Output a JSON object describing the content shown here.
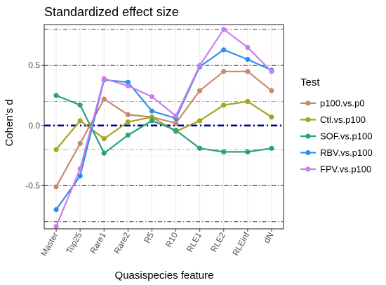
{
  "chart_data": {
    "type": "line",
    "title": "Standardized effect size",
    "xlabel": "Quasispecies feature",
    "ylabel": "Cohen's d",
    "categories": [
      "Master",
      "Top25",
      "Rare1",
      "Rare2",
      "R5",
      "R10",
      "RLE1",
      "RLE2",
      "RLEinf",
      "dN"
    ],
    "yticks": [
      -0.5,
      0.0,
      0.5
    ],
    "ytick_labels": [
      "-0.5",
      "0.0",
      "0.5"
    ],
    "ylim": [
      -0.86,
      0.84
    ],
    "grid": true,
    "legend": {
      "title": "Test",
      "position": "right"
    },
    "reference_lines": [
      {
        "y": 0.0,
        "color": "#00008b",
        "style": "dash-dot"
      },
      {
        "y": 0.2,
        "color": "#b8b800",
        "style": "dash-dot"
      },
      {
        "y": -0.2,
        "color": "#b8b800",
        "style": "dash-dot"
      },
      {
        "y": 0.5,
        "color": "#8b2020",
        "style": "dash-dot"
      },
      {
        "y": -0.5,
        "color": "#8b2020",
        "style": "dash-dot"
      },
      {
        "y": 0.8,
        "color": "#8b2020",
        "style": "dash-dot"
      },
      {
        "y": -0.8,
        "color": "#8b2020",
        "style": "dash-dot"
      }
    ],
    "series": [
      {
        "name": "p100.vs.p0",
        "color": "#c8896a",
        "values": [
          -0.51,
          -0.15,
          0.22,
          0.09,
          0.07,
          0.02,
          0.29,
          0.45,
          0.45,
          0.29
        ]
      },
      {
        "name": "Ctl.vs.p100",
        "color": "#a4a422",
        "values": [
          -0.2,
          0.04,
          -0.11,
          0.03,
          0.07,
          -0.05,
          0.04,
          0.17,
          0.2,
          0.07
        ]
      },
      {
        "name": "SOF.vs.p100",
        "color": "#2ba07c",
        "values": [
          0.25,
          0.17,
          -0.23,
          -0.08,
          0.04,
          -0.04,
          -0.19,
          -0.22,
          -0.22,
          -0.19
        ]
      },
      {
        "name": "RBV.vs.p100",
        "color": "#2e8fe8",
        "values": [
          -0.7,
          -0.42,
          0.38,
          0.36,
          0.12,
          0.06,
          0.49,
          0.63,
          0.55,
          0.46
        ]
      },
      {
        "name": "FPV.vs.p100",
        "color": "#c97ef0",
        "values": [
          -0.84,
          -0.36,
          0.39,
          0.33,
          0.24,
          0.08,
          0.5,
          0.8,
          0.65,
          0.45
        ]
      }
    ]
  }
}
